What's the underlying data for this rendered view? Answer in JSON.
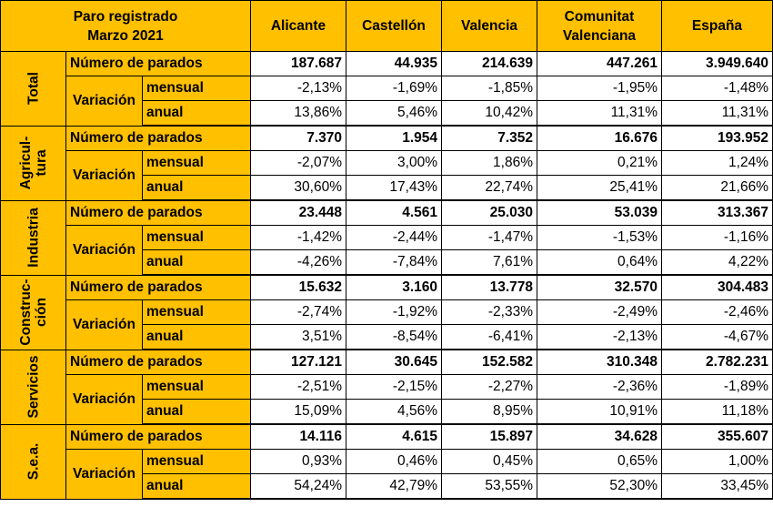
{
  "header": {
    "title_line1": "Paro registrado",
    "title_line2": "Marzo 2021",
    "columns": [
      {
        "line1": "Alicante",
        "line2": ""
      },
      {
        "line1": "Castellón",
        "line2": ""
      },
      {
        "line1": "Valencia",
        "line2": ""
      },
      {
        "line1": "Comunitat",
        "line2": "Valenciana"
      },
      {
        "line1": "España",
        "line2": ""
      }
    ]
  },
  "labels": {
    "parados": "Número de parados",
    "variacion": "Variación",
    "mensual": "mensual",
    "anual": "anual"
  },
  "sectors": [
    {
      "name_line1": "Total",
      "name_line2": "",
      "parados": [
        "187.687",
        "44.935",
        "214.639",
        "447.261",
        "3.949.640"
      ],
      "mensual": [
        "-2,13%",
        "-1,69%",
        "-1,85%",
        "-1,95%",
        "-1,48%"
      ],
      "anual": [
        "13,86%",
        "5,46%",
        "10,42%",
        "11,31%",
        "11,31%"
      ]
    },
    {
      "name_line1": "Agricul-",
      "name_line2": "tura",
      "parados": [
        "7.370",
        "1.954",
        "7.352",
        "16.676",
        "193.952"
      ],
      "mensual": [
        "-2,07%",
        "3,00%",
        "1,86%",
        "0,21%",
        "1,24%"
      ],
      "anual": [
        "30,60%",
        "17,43%",
        "22,74%",
        "25,41%",
        "21,66%"
      ]
    },
    {
      "name_line1": "Industria",
      "name_line2": "",
      "parados": [
        "23.448",
        "4.561",
        "25.030",
        "53.039",
        "313.367"
      ],
      "mensual": [
        "-1,42%",
        "-2,44%",
        "-1,47%",
        "-1,53%",
        "-1,16%"
      ],
      "anual": [
        "-4,26%",
        "-7,84%",
        "7,61%",
        "0,64%",
        "4,22%"
      ]
    },
    {
      "name_line1": "Construc-",
      "name_line2": "ción",
      "parados": [
        "15.632",
        "3.160",
        "13.778",
        "32.570",
        "304.483"
      ],
      "mensual": [
        "-2,74%",
        "-1,92%",
        "-2,33%",
        "-2,49%",
        "-2,46%"
      ],
      "anual": [
        "3,51%",
        "-8,54%",
        "-6,41%",
        "-2,13%",
        "-4,67%"
      ]
    },
    {
      "name_line1": "Servicios",
      "name_line2": "",
      "parados": [
        "127.121",
        "30.645",
        "152.582",
        "310.348",
        "2.782.231"
      ],
      "mensual": [
        "-2,51%",
        "-2,15%",
        "-2,27%",
        "-2,36%",
        "-1,89%"
      ],
      "anual": [
        "15,09%",
        "4,56%",
        "8,95%",
        "10,91%",
        "11,18%"
      ]
    },
    {
      "name_line1": "S.e.a.",
      "name_line2": "",
      "parados": [
        "14.116",
        "4.615",
        "15.897",
        "34.628",
        "355.607"
      ],
      "mensual": [
        "0,93%",
        "0,46%",
        "0,45%",
        "0,65%",
        "1,00%"
      ],
      "anual": [
        "54,24%",
        "42,79%",
        "53,55%",
        "52,30%",
        "33,45%"
      ]
    }
  ]
}
